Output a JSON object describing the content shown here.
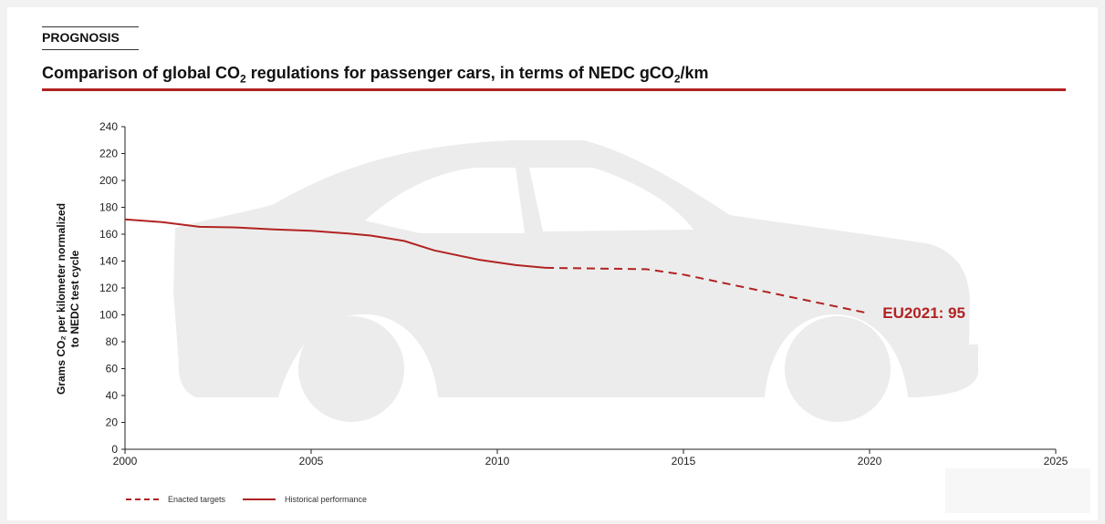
{
  "header": {
    "kicker": "PROGNOSIS",
    "title_part1": "Comparison of global CO",
    "title_sub1": "2",
    "title_part2": " regulations for passenger cars, in terms of NEDC gCO",
    "title_sub2": "2",
    "title_part3": "/km"
  },
  "colors": {
    "accent": "#b22222",
    "car_silhouette": "#ececec"
  },
  "chart_data": {
    "type": "line",
    "title": "Comparison of global CO2 regulations for passenger cars, in terms of NEDC gCO2/km",
    "ylabel_line1": "Grams CO₂ per kilometer normalized",
    "ylabel_line2": "to NEDC test cycle",
    "xlabel": "",
    "xlim": [
      2000,
      2025
    ],
    "ylim": [
      0,
      240
    ],
    "x_ticks": [
      2000,
      2005,
      2010,
      2015,
      2020,
      2025
    ],
    "y_ticks": [
      0,
      20,
      40,
      60,
      80,
      100,
      120,
      140,
      160,
      180,
      200,
      220,
      240
    ],
    "grid": false,
    "legend_position": "bottom-left",
    "series": [
      {
        "name": "Historical performance",
        "style": "solid",
        "color": "#b22222",
        "x": [
          2000,
          2001,
          2002,
          2003,
          2004,
          2005,
          2006,
          2006.6,
          2007.5,
          2008.3,
          2009.5,
          2010.5,
          2011.3
        ],
        "y": [
          171,
          169,
          165.5,
          165,
          163.5,
          162.5,
          160.5,
          159,
          155,
          148,
          141,
          137,
          135
        ]
      },
      {
        "name": "Enacted targets",
        "style": "dashed",
        "color": "#b22222",
        "x": [
          2011.3,
          2014,
          2015,
          2020
        ],
        "y": [
          135,
          134,
          130,
          101
        ]
      }
    ],
    "annotations": [
      {
        "text": "EU2021: 95",
        "x": 2020.3,
        "y": 101
      }
    ]
  }
}
